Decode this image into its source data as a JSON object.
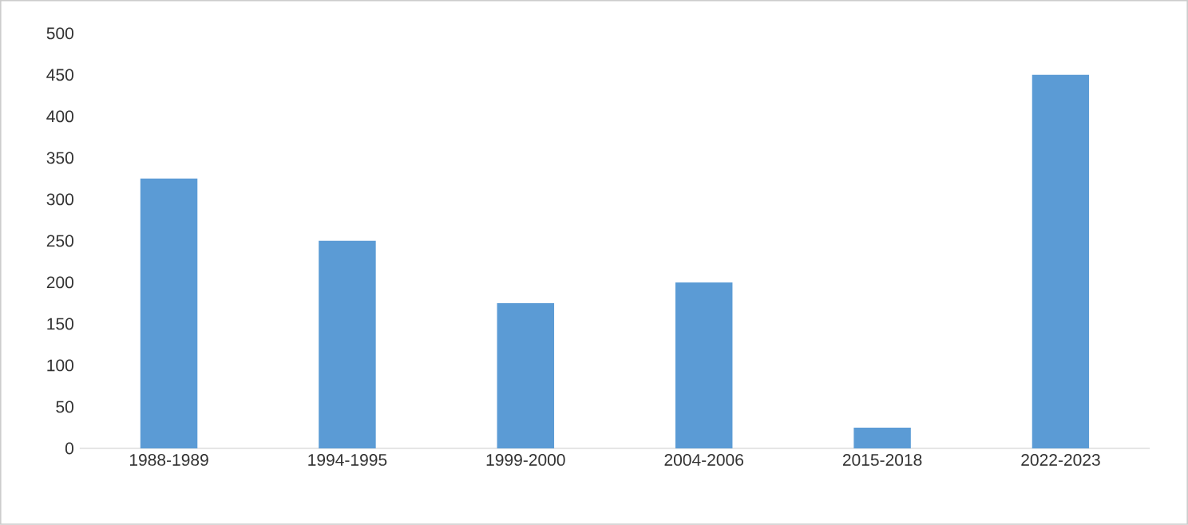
{
  "chart_data": {
    "type": "bar",
    "categories": [
      "1988-1989",
      "1994-1995",
      "1999-2000",
      "2004-2006",
      "2015-2018",
      "2022-2023"
    ],
    "values": [
      325,
      250,
      175,
      200,
      25,
      450
    ],
    "color": "#5b9bd5",
    "ylim": [
      0,
      500
    ],
    "yticks": [
      0,
      50,
      100,
      150,
      200,
      250,
      300,
      350,
      400,
      450,
      500
    ]
  }
}
